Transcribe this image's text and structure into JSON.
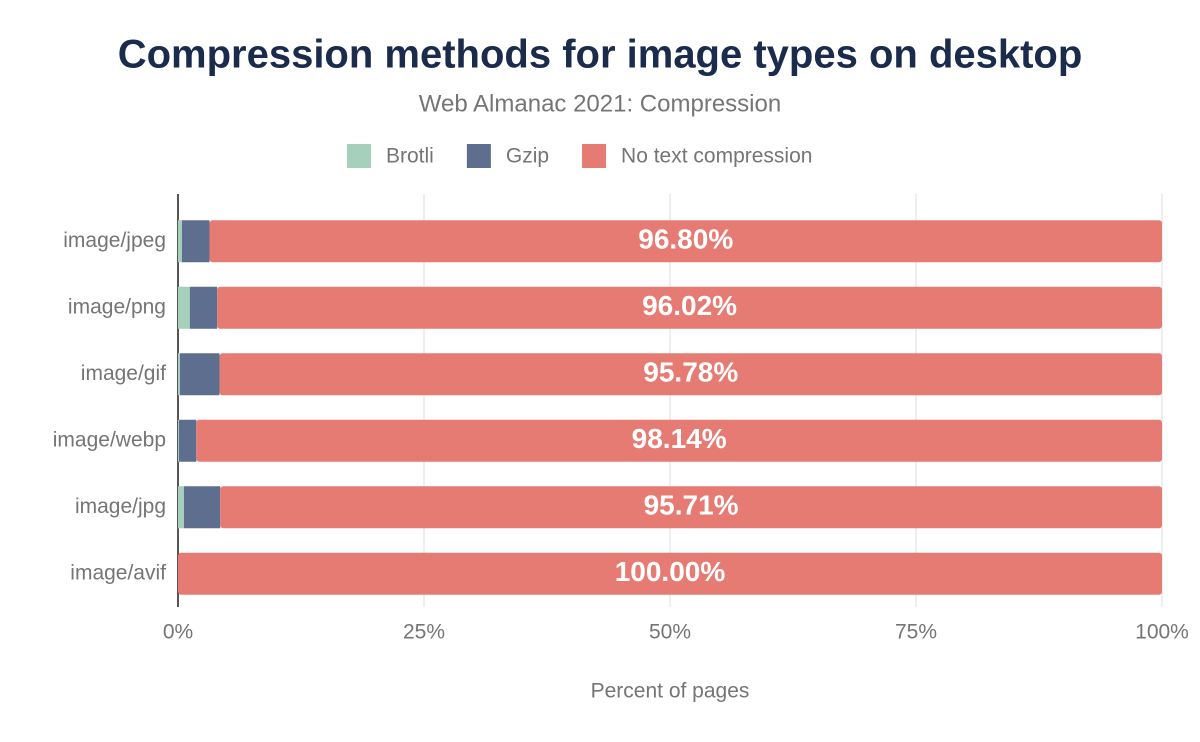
{
  "chart_data": {
    "type": "stacked_bar_horizontal",
    "title": "Compression methods for image types on desktop",
    "subtitle": "Web Almanac 2021: Compression",
    "x_label": "Percent of pages",
    "categories": [
      "image/jpeg",
      "image/png",
      "image/gif",
      "image/webp",
      "image/jpg",
      "image/avif"
    ],
    "series": [
      {
        "name": "Brotli",
        "color": "#a6cfbc",
        "values": [
          0.4,
          1.2,
          0.2,
          0.1,
          0.6,
          0
        ]
      },
      {
        "name": "Gzip",
        "color": "#5e6e8f",
        "values": [
          2.8,
          2.78,
          4.02,
          1.76,
          3.69,
          0
        ]
      },
      {
        "name": "No text compression",
        "color": "#e67b74",
        "values": [
          96.8,
          96.02,
          95.78,
          98.14,
          95.71,
          100
        ],
        "value_labels": [
          "96.80%",
          "96.02%",
          "95.78%",
          "98.14%",
          "95.71%",
          "100.00%"
        ]
      }
    ],
    "xlim": [
      0,
      100
    ],
    "xticks": [
      {
        "value": 0,
        "label": "0%"
      },
      {
        "value": 25,
        "label": "25%"
      },
      {
        "value": 50,
        "label": "50%"
      },
      {
        "value": 75,
        "label": "75%"
      },
      {
        "value": 100,
        "label": "100%"
      }
    ],
    "grid": true
  }
}
